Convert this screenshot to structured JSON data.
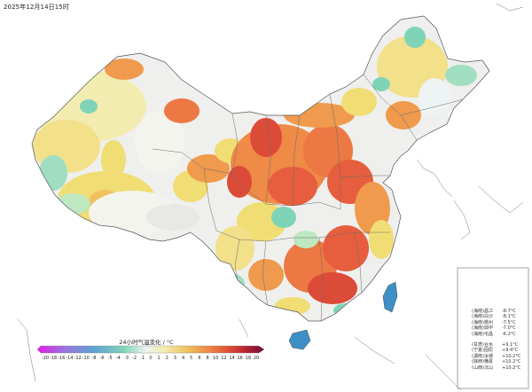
{
  "header": {
    "timestamp": "2025年12月14日15时"
  },
  "legend": {
    "title": "24小时气温变化 / °C",
    "ticks": [
      "-20",
      "-18",
      "-16",
      "-14",
      "-12",
      "-10",
      "-8",
      "-6",
      "-5",
      "-4",
      "-3",
      "-2",
      "-1",
      "0",
      "1",
      "2",
      "3",
      "4",
      "5",
      "6",
      "8",
      "10",
      "12",
      "14",
      "16",
      "18",
      "20"
    ],
    "colors": [
      "#e21ce8",
      "#c54de7",
      "#a06ce0",
      "#8a7fda",
      "#7293d6",
      "#5a9fd2",
      "#52a8cd",
      "#5cb6c8",
      "#6cc6c1",
      "#7fd4b8",
      "#a3dfc0",
      "#c9ebe0",
      "#eef3f3",
      "#f4f4ee",
      "#f7f3c3",
      "#f2ea97",
      "#f0de74",
      "#ecc85f",
      "#efaf55",
      "#f09049",
      "#ec7843",
      "#e65e3e",
      "#dc4938",
      "#c9312f",
      "#b01e2e",
      "#8f1538",
      "#6d0f3f"
    ]
  },
  "stats": {
    "drops": [
      {
        "province": "(海南)",
        "station": "昌江",
        "value": "-8.7°C"
      },
      {
        "province": "(海南)",
        "station": "白沙",
        "value": "-8.1°C"
      },
      {
        "province": "(海南)",
        "station": "儋州",
        "value": "-7.5°C"
      },
      {
        "province": "(海南)",
        "station": "琼中",
        "value": "-7.0°C"
      },
      {
        "province": "(海南)",
        "station": "屯昌",
        "value": "-6.2°C"
      }
    ],
    "rises": [
      {
        "province": "(甘肃)",
        "station": "合水",
        "value": "+9.1°C"
      },
      {
        "province": "(宁夏)",
        "station": "固原",
        "value": "+9.4°C"
      },
      {
        "province": "(湖南)",
        "station": "汝城",
        "value": "+10.2°C"
      },
      {
        "province": "(陕西)",
        "station": "横县",
        "value": "+10.2°C"
      },
      {
        "province": "(山西)",
        "station": "沉山",
        "value": "+10.2°C"
      }
    ]
  }
}
